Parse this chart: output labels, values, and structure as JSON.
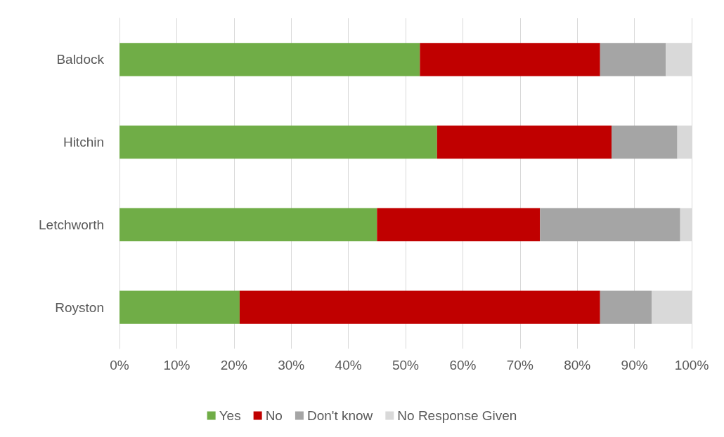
{
  "chart_data": {
    "type": "bar",
    "orientation": "horizontal",
    "stacked": true,
    "categories": [
      "Baldock",
      "Hitchin",
      "Letchworth",
      "Royston"
    ],
    "series": [
      {
        "name": "Yes",
        "color": "#70ad47",
        "values": [
          52.5,
          55.5,
          45,
          21
        ]
      },
      {
        "name": "No",
        "color": "#c00000",
        "values": [
          31.5,
          30.5,
          28.5,
          63
        ]
      },
      {
        "name": "Don't know",
        "color": "#a5a5a5",
        "values": [
          11.5,
          11.5,
          24.5,
          9
        ]
      },
      {
        "name": "No Response Given",
        "color": "#d9d9d9",
        "values": [
          4.5,
          2.5,
          2,
          7
        ]
      }
    ],
    "xlim": [
      0,
      100
    ],
    "xticks": [
      {
        "value": 0,
        "label": "0%"
      },
      {
        "value": 10,
        "label": "10%"
      },
      {
        "value": 20,
        "label": "20%"
      },
      {
        "value": 30,
        "label": "30%"
      },
      {
        "value": 40,
        "label": "40%"
      },
      {
        "value": 50,
        "label": "50%"
      },
      {
        "value": 60,
        "label": "60%"
      },
      {
        "value": 70,
        "label": "70%"
      },
      {
        "value": 80,
        "label": "80%"
      },
      {
        "value": 90,
        "label": "90%"
      },
      {
        "value": 100,
        "label": "100%"
      }
    ],
    "grid": "x",
    "legend": "bottom"
  }
}
